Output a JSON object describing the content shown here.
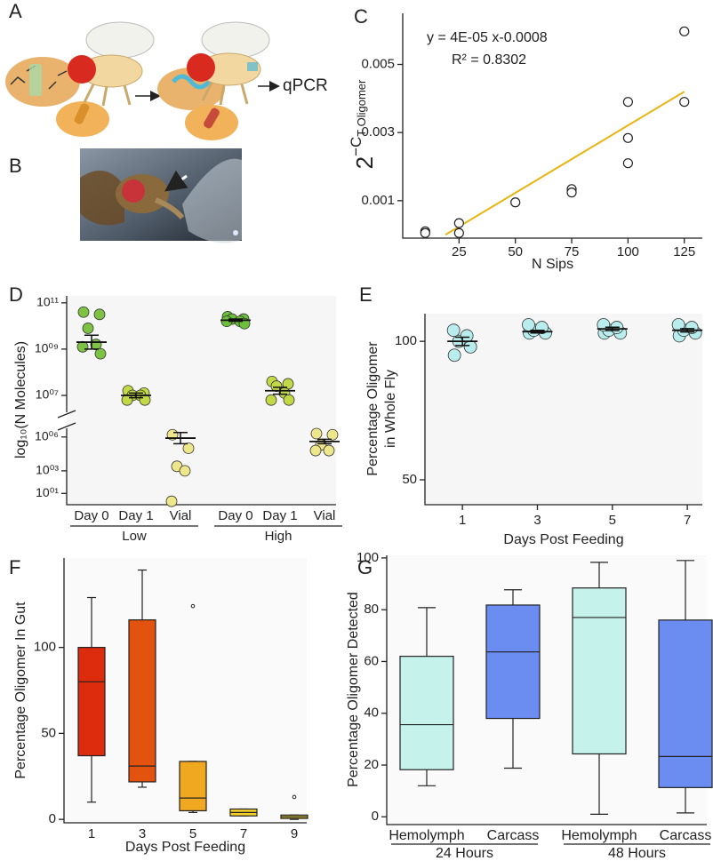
{
  "figure": {
    "panel_labels": [
      "A",
      "B",
      "C",
      "D",
      "E",
      "F",
      "G"
    ],
    "schematic_label": "qPCR"
  },
  "chart_data": [
    {
      "type": "scatter",
      "annotations": [
        "y = 4E-05 x-0.0008",
        "R² = 0.8302"
      ],
      "xlabel": "N Sips",
      "ylabel_parts": [
        "2",
        "−C",
        "T Oligomer"
      ],
      "x": [
        10,
        10,
        25,
        25,
        50,
        75,
        75,
        100,
        100,
        100,
        125,
        125
      ],
      "y": [
        0.0001,
        5e-05,
        0.00034,
        5e-05,
        0.00095,
        0.00134,
        0.00124,
        0.0039,
        0.00284,
        0.0021,
        0.00597,
        0.0039
      ],
      "fit": {
        "x": [
          19,
          125
        ],
        "y": [
          0,
          0.0042
        ],
        "color": "#e8b512"
      },
      "xlim": [
        0,
        133
      ],
      "ylim": [
        -0.0001,
        0.0065
      ],
      "xticks": [
        25,
        50,
        75,
        100,
        125
      ],
      "yticks": [
        0.001,
        0.003,
        0.005
      ]
    },
    {
      "type": "strip",
      "ylabel": "log₁₀(N Molecules)",
      "categories": [
        "Day 0",
        "Day 1",
        "Vial",
        "Day 0",
        "Day 1",
        "Vial"
      ],
      "group_labels": [
        "Low",
        "High"
      ],
      "points": [
        [
          10.6,
          10.5,
          9.9,
          9.2,
          9.1,
          8.8
        ],
        [
          7.2,
          7.1,
          7.0,
          7.0,
          6.8,
          6.8
        ],
        [
          6.2,
          5.0,
          3.4,
          3.0,
          0.3
        ],
        [
          10.4,
          10.3,
          10.3,
          10.2,
          10.2,
          10.1
        ],
        [
          7.6,
          7.5,
          7.4,
          7.1,
          6.8,
          6.8
        ],
        [
          6.3,
          6.2,
          5.3,
          4.8,
          4.8
        ]
      ],
      "means": [
        9.3,
        7.0,
        5.9,
        10.25,
        7.2,
        5.6
      ],
      "errors": [
        0.3,
        0.1,
        0.5,
        0.05,
        0.15,
        0.2
      ],
      "colors": [
        "#7dc242",
        "#c2d846",
        "#eee68a",
        "#6cbf3a",
        "#c2d846",
        "#eee68a"
      ],
      "ylim": [
        0,
        11.3
      ],
      "axis_break": [
        6.3,
        6.5
      ],
      "yticks": [
        {
          "value": 11,
          "label": "10¹¹"
        },
        {
          "value": 9,
          "label": "10⁰⁹"
        },
        {
          "value": 7,
          "label": "10⁰⁷"
        },
        {
          "value": 6,
          "label": "10⁰⁶"
        },
        {
          "value": 3,
          "label": "10⁰³"
        },
        {
          "value": 1,
          "label": "10⁰¹"
        }
      ]
    },
    {
      "type": "strip",
      "ylabel": [
        "Percentage Oligomer",
        "in Whole Fly"
      ],
      "xlabel": "Days Post Feeding",
      "x": [
        1,
        3,
        5,
        7
      ],
      "points": [
        [
          95,
          98,
          100,
          102,
          104
        ],
        [
          103,
          103,
          104,
          105,
          106
        ],
        [
          103,
          103,
          104,
          105,
          106
        ],
        [
          102,
          103,
          104,
          105,
          106
        ]
      ],
      "means": [
        100,
        103.5,
        104.5,
        104
      ],
      "errors": [
        1.5,
        0.5,
        0.6,
        0.6
      ],
      "color": "#b9ecec",
      "xlim": [
        0,
        7.4
      ],
      "ylim": [
        41,
        110
      ],
      "xticks": [
        1,
        3,
        5,
        7
      ],
      "yticks": [
        50,
        100
      ]
    },
    {
      "type": "box",
      "ylabel": "Percentage Oligomer In Gut",
      "xlabel": "Days Post Feeding",
      "categories": [
        "1",
        "3",
        "5",
        "7",
        "9"
      ],
      "stats": [
        {
          "min": 10,
          "q1": 37,
          "median": 80,
          "q3": 100,
          "max": 129,
          "outliers": []
        },
        {
          "min": 18.7,
          "q1": 21.8,
          "median": 31,
          "q3": 116,
          "max": 145,
          "outliers": []
        },
        {
          "min": 4,
          "q1": 5,
          "median": 12.4,
          "q3": 33.7,
          "max": 33.7,
          "outliers": [
            124
          ]
        },
        {
          "min": 2,
          "q1": 2,
          "median": 4,
          "q3": 6,
          "max": 6,
          "outliers": []
        },
        {
          "min": 0,
          "q1": 0.5,
          "median": 1.5,
          "q3": 2.5,
          "max": 2.5,
          "outliers": [
            13
          ]
        }
      ],
      "colors": [
        "#dd2b0e",
        "#e4520f",
        "#f0a821",
        "#f5d02a",
        "#f8df3a"
      ],
      "ylim": [
        -2,
        152
      ],
      "yticks": [
        0,
        50,
        100
      ]
    },
    {
      "type": "box",
      "ylabel": "Percentage Oligomer Detected",
      "categories": [
        "Hemolymph",
        "Carcass",
        "Hemolymph",
        "Carcass"
      ],
      "group_labels": [
        "24 Hours",
        "48 Hours"
      ],
      "stats": [
        {
          "min": 12,
          "q1": 18.2,
          "median": 35.6,
          "q3": 62,
          "max": 80.8,
          "outliers": []
        },
        {
          "min": 18.8,
          "q1": 38,
          "median": 63.7,
          "q3": 81.8,
          "max": 87.7,
          "outliers": []
        },
        {
          "min": 1,
          "q1": 24.3,
          "median": 77,
          "q3": 88.4,
          "max": 98.3,
          "outliers": []
        },
        {
          "min": 1.5,
          "q1": 11.3,
          "median": 23.3,
          "q3": 76,
          "max": 99,
          "outliers": []
        }
      ],
      "colors": [
        "#c6f2ec",
        "#6b8cf0",
        "#c6f2ec",
        "#6b8cf0"
      ],
      "ylim": [
        -3,
        101
      ],
      "yticks": [
        0,
        20,
        40,
        60,
        80,
        100
      ]
    }
  ]
}
